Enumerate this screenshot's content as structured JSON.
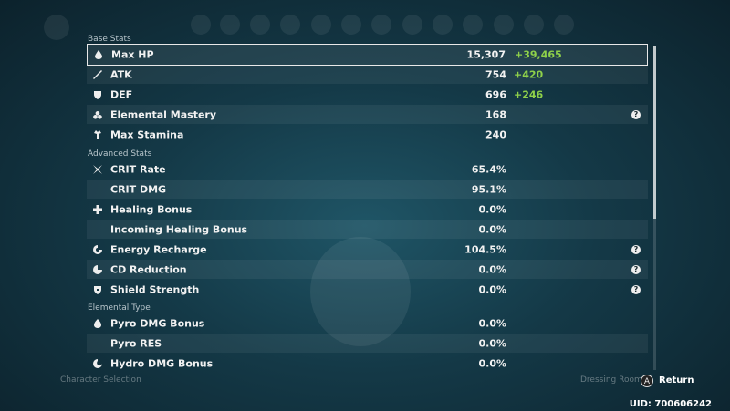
{
  "sections": [
    {
      "title": "Base Stats",
      "rows": [
        {
          "label": "Max HP",
          "value": "15,307",
          "bonus": "+39,465"
        },
        {
          "label": "ATK",
          "value": "754",
          "bonus": "+420"
        },
        {
          "label": "DEF",
          "value": "696",
          "bonus": "+246"
        },
        {
          "label": "Elemental Mastery",
          "value": "168",
          "help": "?"
        },
        {
          "label": "Max Stamina",
          "value": "240"
        }
      ]
    },
    {
      "title": "Advanced Stats",
      "rows": [
        {
          "label": "CRIT Rate",
          "value": "65.4%"
        },
        {
          "label": "CRIT DMG",
          "value": "95.1%"
        },
        {
          "label": "Healing Bonus",
          "value": "0.0%"
        },
        {
          "label": "Incoming Healing Bonus",
          "value": "0.0%"
        },
        {
          "label": "Energy Recharge",
          "value": "104.5%",
          "help": "?"
        },
        {
          "label": "CD Reduction",
          "value": "0.0%",
          "help": "?"
        },
        {
          "label": "Shield Strength",
          "value": "0.0%",
          "help": "?"
        }
      ]
    },
    {
      "title": "Elemental Type",
      "rows": [
        {
          "label": "Pyro DMG Bonus",
          "value": "0.0%"
        },
        {
          "label": "Pyro RES",
          "value": "0.0%"
        },
        {
          "label": "Hydro DMG Bonus",
          "value": "0.0%"
        }
      ]
    }
  ],
  "footer": {
    "left": "Character Selection",
    "right": "Dressing Room",
    "button_key": "A",
    "button": "Return",
    "uid": "UID: 700606242"
  }
}
